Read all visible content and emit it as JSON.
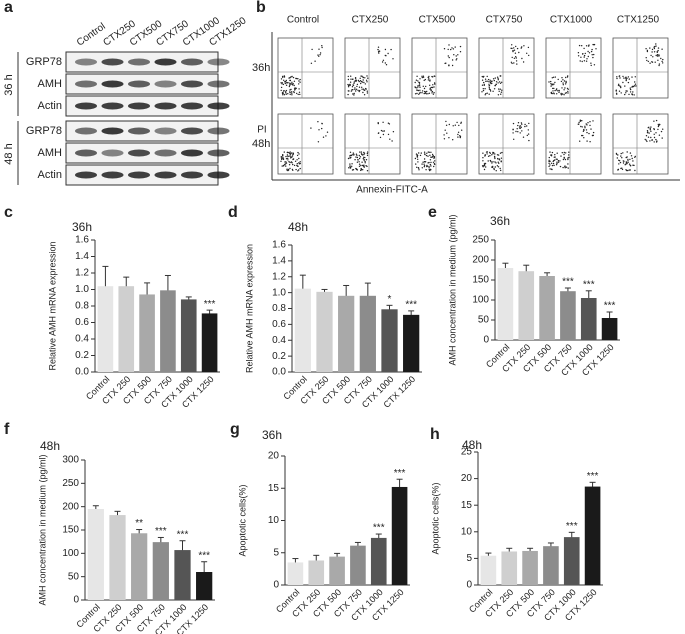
{
  "panel_a": {
    "letter": "a",
    "columns": [
      "Control",
      "CTX250",
      "CTX500",
      "CTX750",
      "CTX1000",
      "CTX1250"
    ],
    "groups": [
      {
        "label": "36 h",
        "rows": [
          "GRP78",
          "AMH",
          "Actin"
        ]
      },
      {
        "label": "48 h",
        "rows": [
          "GRP78",
          "AMH",
          "Actin"
        ]
      }
    ]
  },
  "panel_b": {
    "letter": "b",
    "columns": [
      "Control",
      "CTX250",
      "CTX500",
      "CTX750",
      "CTX1000",
      "CTX1250"
    ],
    "rows": [
      "36h",
      "48h"
    ],
    "y_label": "PI",
    "x_label": "Annexin-FITC-A"
  },
  "chart_data": [
    {
      "type": "bar",
      "letter": "c",
      "title": "36h",
      "y_label": "Relative AMH mRNA expression",
      "categories": [
        "Control",
        "CTX 250",
        "CTX 500",
        "CTX 750",
        "CTX 1000",
        "CTX 1250"
      ],
      "values": [
        1.04,
        1.04,
        0.94,
        0.99,
        0.88,
        0.71
      ],
      "errors": [
        0.24,
        0.11,
        0.14,
        0.18,
        0.03,
        0.04
      ],
      "annotations": [
        null,
        null,
        null,
        null,
        null,
        "***"
      ],
      "colors": [
        "#e6e6e6",
        "#cfcfcf",
        "#a9a9a9",
        "#8c8c8c",
        "#555555",
        "#1a1a1a"
      ],
      "ylim": [
        0,
        1.6
      ],
      "yticks": [
        {
          "value": 0,
          "label": "0.0"
        },
        0.2,
        0.4,
        0.6,
        0.8,
        {
          "value": 1,
          "label": "1.0"
        },
        1.2,
        1.4,
        1.6
      ]
    },
    {
      "type": "bar",
      "letter": "d",
      "title": "48h",
      "y_label": "Relative AMH mRNA expression",
      "categories": [
        "Control",
        "CTX 250",
        "CTX 500",
        "CTX 750",
        "CTX 1000",
        "CTX 1250"
      ],
      "values": [
        1.05,
        1.01,
        0.96,
        0.96,
        0.79,
        0.72
      ],
      "errors": [
        0.17,
        0.03,
        0.13,
        0.16,
        0.05,
        0.05
      ],
      "annotations": [
        null,
        null,
        null,
        null,
        "*",
        "***"
      ],
      "colors": [
        "#e6e6e6",
        "#cfcfcf",
        "#a9a9a9",
        "#8c8c8c",
        "#555555",
        "#1a1a1a"
      ],
      "ylim": [
        0,
        1.6
      ],
      "yticks": [
        {
          "value": 0,
          "label": "0.0"
        },
        0.2,
        0.4,
        0.6,
        0.8,
        {
          "value": 1,
          "label": "1.0"
        },
        1.2,
        1.4,
        1.6
      ]
    },
    {
      "type": "bar",
      "letter": "e",
      "title": "36h",
      "y_label": "AMH concentration in medium (pg/ml)",
      "categories": [
        "Control",
        "CTX 250",
        "CTX 500",
        "CTX 750",
        "CTX 1000",
        "CTX 1250"
      ],
      "values": [
        180,
        172,
        160,
        122,
        105,
        55
      ],
      "errors": [
        12,
        15,
        8,
        8,
        18,
        15
      ],
      "annotations": [
        null,
        null,
        null,
        "***",
        "***",
        "***"
      ],
      "colors": [
        "#e6e6e6",
        "#cfcfcf",
        "#a9a9a9",
        "#8c8c8c",
        "#555555",
        "#1a1a1a"
      ],
      "ylim": [
        0,
        250
      ],
      "yticks": [
        0,
        50,
        100,
        150,
        200,
        250
      ]
    },
    {
      "type": "bar",
      "letter": "f",
      "title": "48h",
      "y_label": "AMH concentration in medium (pg/ml)",
      "categories": [
        "Control",
        "CTX 250",
        "CTX 500",
        "CTX 750",
        "CTX 1000",
        "CTX 1250"
      ],
      "values": [
        195,
        182,
        143,
        124,
        107,
        60
      ],
      "errors": [
        7,
        8,
        8,
        10,
        20,
        22
      ],
      "annotations": [
        null,
        null,
        "**",
        "***",
        "***",
        "***"
      ],
      "colors": [
        "#e6e6e6",
        "#cfcfcf",
        "#a9a9a9",
        "#8c8c8c",
        "#555555",
        "#1a1a1a"
      ],
      "ylim": [
        0,
        300
      ],
      "yticks": [
        0,
        50,
        100,
        150,
        200,
        250,
        300
      ]
    },
    {
      "type": "bar",
      "letter": "g",
      "title": "36h",
      "y_label": "Apoptotic cells(%)",
      "categories": [
        "Control",
        "CTX 250",
        "CTX 500",
        "CTX 750",
        "CTX 1000",
        "CTX 1250"
      ],
      "values": [
        3.5,
        3.8,
        4.4,
        6.1,
        7.3,
        15.2
      ],
      "errors": [
        0.6,
        0.8,
        0.5,
        0.5,
        0.6,
        1.2
      ],
      "annotations": [
        null,
        null,
        null,
        null,
        "***",
        "***"
      ],
      "colors": [
        "#e6e6e6",
        "#cfcfcf",
        "#a9a9a9",
        "#8c8c8c",
        "#555555",
        "#1a1a1a"
      ],
      "ylim": [
        0,
        20
      ],
      "yticks": [
        0,
        5,
        10,
        15,
        20
      ]
    },
    {
      "type": "bar",
      "letter": "h",
      "title": "48h",
      "y_label": "Apoptotic cells(%)",
      "categories": [
        "Control",
        "CTX 250",
        "CTX 500",
        "CTX 750",
        "CTX 1000",
        "CTX 1250"
      ],
      "values": [
        5.5,
        6.3,
        6.4,
        7.3,
        9,
        18.5
      ],
      "errors": [
        0.5,
        0.6,
        0.5,
        0.6,
        0.9,
        0.8
      ],
      "annotations": [
        null,
        null,
        null,
        null,
        "***",
        "***"
      ],
      "colors": [
        "#e6e6e6",
        "#cfcfcf",
        "#a9a9a9",
        "#8c8c8c",
        "#555555",
        "#1a1a1a"
      ],
      "ylim": [
        0,
        25
      ],
      "yticks": [
        0,
        5,
        10,
        15,
        20,
        25
      ]
    }
  ]
}
